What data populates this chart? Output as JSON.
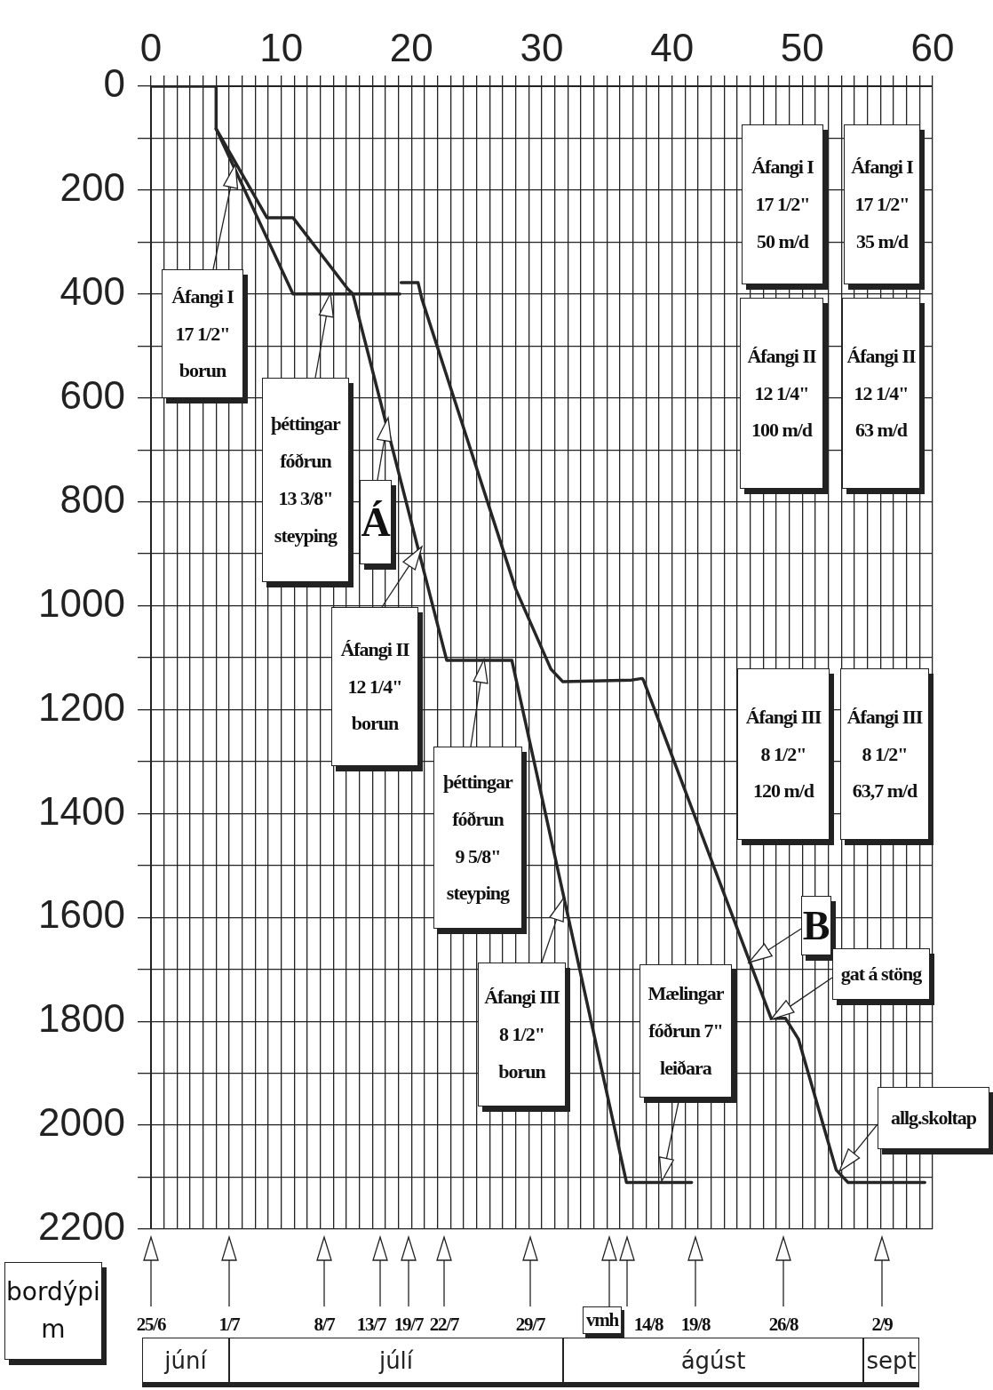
{
  "chart_data": {
    "type": "line",
    "ylabel": "bordýpi\nm",
    "xlim": [
      0,
      60
    ],
    "xticks": [
      0,
      {
        "value": 1,
        "label": null
      },
      {
        "value": 2,
        "label": null
      },
      {
        "value": 3,
        "label": null
      },
      {
        "value": 4,
        "label": null
      },
      {
        "value": 5,
        "label": null
      },
      {
        "value": 6,
        "label": null
      },
      {
        "value": 7,
        "label": null
      },
      {
        "value": 8,
        "label": null
      },
      {
        "value": 9,
        "label": null
      },
      10,
      {
        "value": 11,
        "label": null
      },
      {
        "value": 12,
        "label": null
      },
      {
        "value": 13,
        "label": null
      },
      {
        "value": 14,
        "label": null
      },
      {
        "value": 15,
        "label": null
      },
      {
        "value": 16,
        "label": null
      },
      {
        "value": 17,
        "label": null
      },
      {
        "value": 18,
        "label": null
      },
      {
        "value": 19,
        "label": null
      },
      20,
      {
        "value": 21,
        "label": null
      },
      {
        "value": 22,
        "label": null
      },
      {
        "value": 23,
        "label": null
      },
      {
        "value": 24,
        "label": null
      },
      {
        "value": 25,
        "label": null
      },
      {
        "value": 26,
        "label": null
      },
      {
        "value": 27,
        "label": null
      },
      {
        "value": 28,
        "label": null
      },
      {
        "value": 29,
        "label": null
      },
      30,
      {
        "value": 31,
        "label": null
      },
      {
        "value": 32,
        "label": null
      },
      {
        "value": 33,
        "label": null
      },
      {
        "value": 34,
        "label": null
      },
      {
        "value": 35,
        "label": null
      },
      {
        "value": 36,
        "label": null
      },
      {
        "value": 37,
        "label": null
      },
      {
        "value": 38,
        "label": null
      },
      {
        "value": 39,
        "label": null
      },
      40,
      {
        "value": 41,
        "label": null
      },
      {
        "value": 42,
        "label": null
      },
      {
        "value": 43,
        "label": null
      },
      {
        "value": 44,
        "label": null
      },
      {
        "value": 45,
        "label": null
      },
      {
        "value": 46,
        "label": null
      },
      {
        "value": 47,
        "label": null
      },
      {
        "value": 48,
        "label": null
      },
      {
        "value": 49,
        "label": null
      },
      50,
      {
        "value": 51,
        "label": null
      },
      {
        "value": 52,
        "label": null
      },
      {
        "value": 53,
        "label": null
      },
      {
        "value": 54,
        "label": null
      },
      {
        "value": 55,
        "label": null
      },
      {
        "value": 56,
        "label": null
      },
      {
        "value": 57,
        "label": null
      },
      {
        "value": 58,
        "label": null
      },
      {
        "value": 59,
        "label": null
      },
      60
    ],
    "ylim": [
      2200,
      0
    ],
    "yticks": [
      0,
      {
        "value": 100,
        "label": null
      },
      200,
      {
        "value": 300,
        "label": null
      },
      400,
      {
        "value": 500,
        "label": null
      },
      600,
      {
        "value": 700,
        "label": null
      },
      800,
      {
        "value": 900,
        "label": null
      },
      1000,
      {
        "value": 1100,
        "label": null
      },
      1200,
      {
        "value": 1300,
        "label": null
      },
      1400,
      {
        "value": 1500,
        "label": null
      },
      1600,
      {
        "value": 1700,
        "label": null
      },
      1800,
      {
        "value": 1900,
        "label": null
      },
      2000,
      {
        "value": 2100,
        "label": null
      },
      2200
    ],
    "grid": true,
    "legend": false,
    "marker": "none",
    "line_style": "solid",
    "series": [
      {
        "color": "#262626",
        "x": [
          0,
          5,
          5,
          8.9,
          10.9,
          15.1,
          15.5,
          22.7,
          27.7,
          36.5,
          41.5
        ],
        "values": [
          0,
          0,
          82,
          253,
          253,
          390,
          400,
          1105,
          1105,
          2110,
          2110
        ]
      },
      {
        "color": "#262626",
        "x": [
          5,
          10.9,
          19.1,
          19.15,
          19.2,
          20.5,
          20.8,
          28,
          30.7,
          31.6,
          36.9,
          37.7,
          37.8,
          47.6,
          48.7,
          49.7,
          52.6,
          53.5,
          59.4
        ],
        "values": [
          82,
          400,
          400,
          null,
          378,
          378,
          410,
          968,
          1122,
          1146,
          1143,
          1140,
          1143,
          1794,
          1794,
          1834,
          2086,
          2110,
          2110
        ]
      }
    ],
    "annotations": [
      "Áfangi I\n17 1/2\"\nborun",
      "þéttingar\nfóðrun\n13 3/8\"\nsteyping",
      "Á",
      "Áfangi II\n12 1/4\"\nborun",
      "þéttingar\nfóðrun\n9 5/8\"\nsteyping",
      "Áfangi III\n8 1/2\"\nborun",
      "Mælingar\nfóðrun 7\"\nleiðara",
      "B",
      "gat á stöng",
      "allg.skoltap",
      "Áfangi I\n17 1/2\"\n50 m/d",
      "Áfangi I\n17 1/2\"\n35 m/d",
      "Áfangi II\n12 1/4\"\n100 m/d",
      "Áfangi II\n12 1/4\"\n63 m/d",
      "Áfangi III\n8 1/2\"\n120 m/d",
      "Áfangi III\n8 1/2\"\n63,7 m/d",
      "25/6",
      "1/7",
      "8/7",
      "13/7",
      "19/7",
      "22/7",
      "29/7",
      "vmh",
      "14/8",
      "19/8",
      "26/8",
      "2/9",
      "júní",
      "júlí",
      "ágúst",
      "sept"
    ]
  }
}
